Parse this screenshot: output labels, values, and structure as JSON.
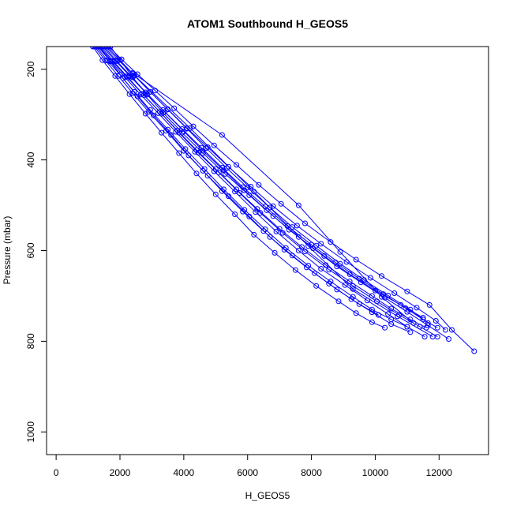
{
  "chart_data": {
    "type": "line",
    "title": "ATOM1 Southbound H_GEOS5",
    "xlabel": "H_GEOS5",
    "ylabel": "Pressure (mbar)",
    "xlim": [
      -300,
      13550
    ],
    "ylim": [
      1050,
      150
    ],
    "y_reversed": true,
    "grid": false,
    "legend": "none",
    "markers": "open-circle",
    "x_ticks": [
      0,
      2000,
      4000,
      6000,
      8000,
      10000,
      12000
    ],
    "y_ticks": [
      200,
      400,
      600,
      800,
      1000
    ],
    "series": [
      {
        "x": [
          1150,
          1450,
          1850,
          2300,
          2800,
          3300,
          3850,
          4400,
          5000,
          5600,
          6200,
          6850,
          7500,
          8150,
          8850,
          9400,
          9900,
          10300
        ],
        "y": [
          150,
          180,
          215,
          255,
          298,
          340,
          385,
          430,
          476,
          520,
          565,
          605,
          643,
          678,
          712,
          738,
          758,
          770
        ]
      },
      {
        "x": [
          1250,
          1600,
          2000,
          2450,
          2950,
          3500,
          4050,
          4650,
          5250,
          5900,
          6550,
          7200,
          7900,
          8600,
          9300,
          9900,
          10500,
          11000
        ],
        "y": [
          150,
          180,
          212,
          250,
          290,
          333,
          376,
          420,
          465,
          510,
          553,
          594,
          633,
          668,
          702,
          730,
          752,
          768
        ]
      },
      {
        "x": [
          1350,
          1750,
          2200,
          2700,
          3250,
          3800,
          4400,
          5000,
          5650,
          6300,
          7000,
          7700,
          8450,
          9200,
          9900,
          10500,
          11100,
          11600
        ],
        "y": [
          150,
          182,
          216,
          254,
          294,
          335,
          378,
          420,
          465,
          508,
          552,
          592,
          632,
          668,
          700,
          728,
          752,
          770
        ]
      },
      {
        "x": [
          1450,
          1850,
          2300,
          2800,
          3350,
          3950,
          4550,
          5200,
          5850,
          6550,
          7250,
          8000,
          8750,
          9500,
          10250,
          10950,
          11500,
          11950
        ],
        "y": [
          150,
          181,
          214,
          251,
          290,
          332,
          373,
          417,
          460,
          503,
          546,
          587,
          626,
          662,
          696,
          727,
          752,
          770
        ]
      },
      {
        "x": [
          1550,
          1950,
          2450,
          2950,
          3500,
          4100,
          4750,
          5400,
          6100,
          6800,
          7550,
          8300,
          9100,
          9850,
          10600,
          11300,
          11900,
          12200
        ],
        "y": [
          150,
          180,
          214,
          250,
          288,
          330,
          372,
          415,
          459,
          502,
          545,
          585,
          625,
          660,
          694,
          726,
          755,
          775
        ]
      },
      {
        "x": [
          1650,
          2050,
          2550,
          3100,
          3700,
          4300,
          4950,
          5650,
          6350,
          7050,
          7800,
          8600,
          9400,
          10200,
          11000,
          11700,
          12400,
          13100
        ],
        "y": [
          150,
          178,
          211,
          247,
          286,
          326,
          368,
          411,
          455,
          497,
          540,
          581,
          620,
          656,
          690,
          720,
          775,
          822
        ]
      },
      {
        "x": [
          1300,
          1700,
          2150,
          2650,
          3200,
          3750,
          4350,
          4950,
          5600,
          6250,
          6900,
          7600,
          8300,
          9050,
          9750,
          10400,
          11000,
          11550
        ],
        "y": [
          150,
          182,
          217,
          256,
          297,
          338,
          382,
          425,
          470,
          515,
          558,
          600,
          640,
          676,
          710,
          740,
          768,
          790
        ]
      },
      {
        "x": [
          1200,
          1550,
          1950,
          2400,
          2900,
          3450,
          4000,
          4600,
          5200,
          5850,
          6500,
          7150,
          7850,
          8550,
          9250,
          9900,
          10500,
          11100
        ],
        "y": [
          150,
          181,
          215,
          253,
          294,
          336,
          380,
          424,
          469,
          514,
          557,
          598,
          637,
          673,
          707,
          736,
          762,
          780
        ]
      },
      {
        "x": [
          1400,
          1800,
          2250,
          2750,
          3300,
          3850,
          4450,
          5100,
          5750,
          6400,
          7100,
          7800,
          8550,
          9300,
          10050,
          10750,
          11400,
          11950
        ],
        "y": [
          150,
          183,
          218,
          257,
          298,
          340,
          384,
          428,
          473,
          517,
          561,
          602,
          642,
          678,
          712,
          742,
          768,
          790
        ]
      },
      {
        "x": [
          1500,
          1900,
          2350,
          2850,
          3400,
          4000,
          4600,
          5250,
          5900,
          6600,
          7300,
          8050,
          8800,
          9550,
          10300,
          11000,
          11650,
          12300
        ],
        "y": [
          150,
          182,
          216,
          254,
          294,
          337,
          380,
          423,
          467,
          511,
          554,
          595,
          635,
          670,
          704,
          735,
          765,
          795
        ]
      },
      {
        "x": [
          1350,
          1700,
          2100,
          2550,
          3050,
          3600,
          4150,
          4750,
          5400,
          6050,
          6700,
          7400,
          8100,
          8800,
          9500,
          10100
        ],
        "y": [
          150,
          183,
          220,
          260,
          302,
          345,
          390,
          435,
          480,
          525,
          570,
          611,
          650,
          686,
          718,
          742
        ]
      },
      {
        "x": [
          1600,
          2000,
          2450,
          2950,
          3500,
          4100,
          4700,
          5350,
          6000,
          6700,
          7400,
          8150,
          8900,
          9650,
          10400,
          11100,
          11650
        ],
        "y": [
          150,
          180,
          213,
          250,
          289,
          331,
          374,
          418,
          461,
          505,
          548,
          589,
          629,
          665,
          699,
          730,
          760
        ]
      },
      {
        "x": [
          1700,
          2400,
          2850,
          3350,
          3950,
          4600,
          5300,
          6050,
          6800,
          7600,
          8400,
          9200,
          10000,
          10800,
          11500
        ],
        "y": [
          150,
          218,
          256,
          296,
          340,
          385,
          431,
          478,
          524,
          570,
          612,
          652,
          688,
          720,
          748
        ]
      },
      {
        "x": [
          2400,
          5200,
          7600,
          8900,
          10200,
          11200
        ],
        "y": [
          208,
          345,
          500,
          603,
          702,
          760
        ]
      },
      {
        "x": [
          2400,
          4200,
          6200,
          7900,
          9300,
          10700,
          11800
        ],
        "y": [
          210,
          330,
          470,
          590,
          685,
          745,
          790
        ]
      }
    ]
  }
}
